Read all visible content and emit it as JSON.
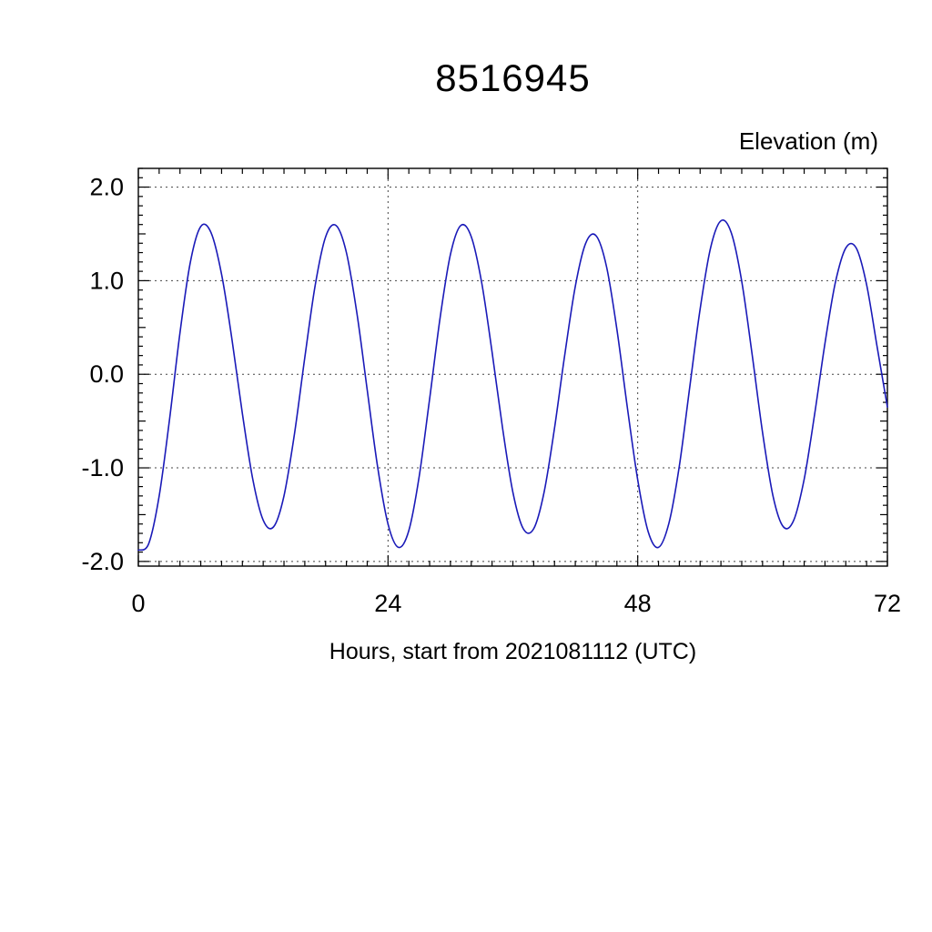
{
  "page": {
    "background": "#ffffff"
  },
  "chart_data": {
    "type": "line",
    "title": "8516945",
    "ylabel": "Elevation (m)",
    "xlabel": "Hours, start from 2021081112 (UTC)",
    "xlim": [
      0,
      72
    ],
    "ylim": [
      -2.05,
      2.2
    ],
    "x_ticks": [
      0,
      24,
      48,
      72
    ],
    "y_ticks": [
      -2.0,
      -1.0,
      0.0,
      1.0,
      2.0
    ],
    "x_tick_minor_step": 2,
    "y_tick_minor_step": 0.1,
    "grid": {
      "h_lines": [
        -2,
        -1,
        0,
        1,
        2
      ],
      "v_lines": [
        24,
        48
      ],
      "style": "dotted",
      "color": "#444444"
    },
    "line_color": "#1a1ab8",
    "axis_color": "#000000",
    "series": [
      {
        "name": "Elevation",
        "x": [
          0,
          1,
          2,
          3,
          4,
          5,
          6,
          7,
          8,
          9,
          10,
          11,
          12,
          13,
          14,
          15,
          16,
          17,
          18,
          19,
          20,
          21,
          22,
          23,
          24,
          25,
          26,
          27,
          28,
          29,
          30,
          31,
          32,
          33,
          34,
          35,
          36,
          37,
          38,
          39,
          40,
          41,
          42,
          43,
          44,
          45,
          46,
          47,
          48,
          49,
          50,
          51,
          52,
          53,
          54,
          55,
          56,
          57,
          58,
          59,
          60,
          61,
          62,
          63,
          64,
          65,
          66,
          67,
          68,
          69,
          70,
          71,
          72
        ],
        "y": [
          -1.88,
          -1.81,
          -1.3,
          -0.48,
          0.44,
          1.2,
          1.58,
          1.51,
          1.07,
          0.37,
          -0.42,
          -1.12,
          -1.56,
          -1.63,
          -1.3,
          -0.64,
          0.18,
          0.95,
          1.47,
          1.59,
          1.3,
          0.66,
          -0.17,
          -0.99,
          -1.6,
          -1.85,
          -1.67,
          -1.09,
          -0.26,
          0.6,
          1.28,
          1.59,
          1.47,
          0.98,
          0.24,
          -0.57,
          -1.26,
          -1.65,
          -1.65,
          -1.26,
          -0.58,
          0.22,
          0.94,
          1.4,
          1.48,
          1.15,
          0.48,
          -0.35,
          -1.13,
          -1.68,
          -1.85,
          -1.59,
          -0.98,
          -0.14,
          0.7,
          1.35,
          1.64,
          1.51,
          0.99,
          0.21,
          -0.62,
          -1.3,
          -1.63,
          -1.56,
          -1.12,
          -0.43,
          0.33,
          0.98,
          1.35,
          1.35,
          0.96,
          0.3,
          -0.35
        ]
      }
    ]
  }
}
